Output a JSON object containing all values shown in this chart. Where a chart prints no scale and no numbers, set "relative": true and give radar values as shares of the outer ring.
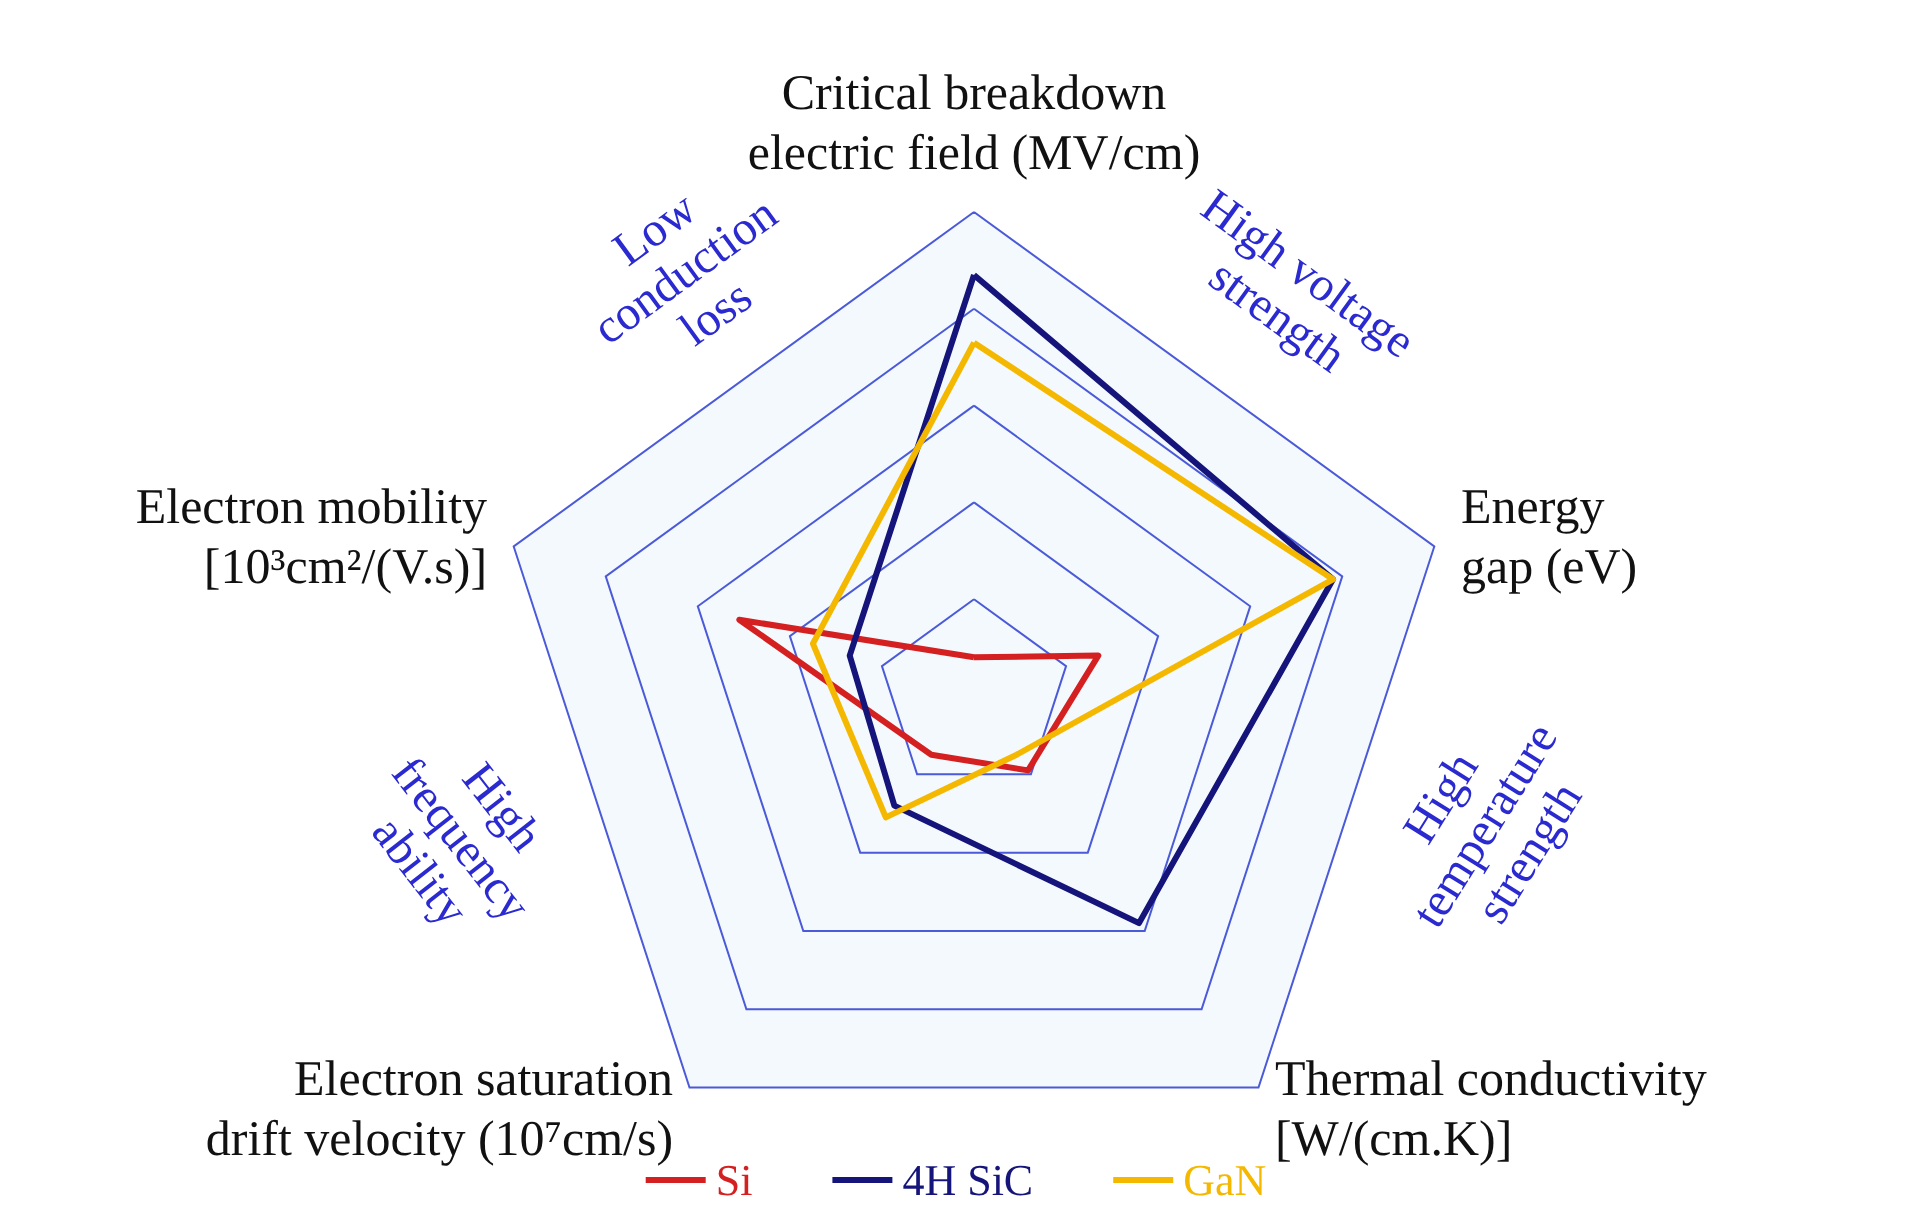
{
  "chart_data": {
    "type": "radar",
    "relative": true,
    "categories": [
      "Critical breakdown electric field (MV/cm)",
      "Energy gap (eV)",
      "Thermal conductivity [W/(cm.K)]",
      "Electron saturation drift velocity (10⁷cm/s)",
      "Electron mobility [10³cm²/(V.s)]"
    ],
    "series": [
      {
        "name": "Si",
        "color": "#d42020",
        "values": [
          0.08,
          0.27,
          0.19,
          0.15,
          0.51
        ]
      },
      {
        "name": "4H SiC",
        "color": "#14147a",
        "values": [
          0.87,
          0.78,
          0.58,
          0.28,
          0.27
        ]
      },
      {
        "name": "GaN",
        "color": "#f5b800",
        "values": [
          0.73,
          0.78,
          0.15,
          0.31,
          0.35
        ]
      }
    ],
    "annotations": [
      "Low conduction loss",
      "High voltage strength",
      "High temperature strength",
      "High frequency ability"
    ],
    "legend": "bottom"
  }
}
